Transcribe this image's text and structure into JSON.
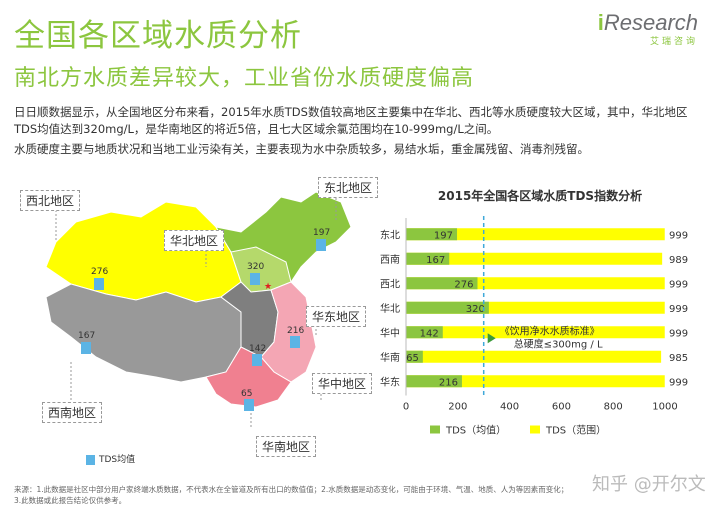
{
  "header": {
    "title": "全国各区域水质分析",
    "subtitle": "南北方水质差异较大，工业省份水质硬度偏高",
    "logo_brand_i": "i",
    "logo_brand_rest": "Research",
    "logo_sub": "艾瑞咨询"
  },
  "body_text": {
    "p1": "日日顺数据显示，从全国地区分布来看，2015年水质TDS数值较高地区主要集中在华北、西北等水质硬度较大区域，其中，华北地区TDS均值达到320mg/L，是华南地区的将近5倍，且七大区域余氯范围均在10-999mg/L之间。",
    "p2": "水质硬度主要与地质状况和当地工业污染有关，主要表现为水中杂质较多，易结水垢，重金属残留、消毒剂残留。"
  },
  "map": {
    "regions": [
      {
        "name": "西北地区",
        "value": "276"
      },
      {
        "name": "东北地区",
        "value": "197"
      },
      {
        "name": "华北地区",
        "value": "320"
      },
      {
        "name": "华东地区",
        "value": "216"
      },
      {
        "name": "西南地区",
        "value": "167"
      },
      {
        "name": "华中地区",
        "value": "142"
      },
      {
        "name": "华南地区",
        "value": "65"
      }
    ],
    "legend": "TDS均值"
  },
  "chart_data": {
    "type": "bar",
    "orientation": "horizontal",
    "stacked": false,
    "title": "2015年全国各区域水质TDS指数分析",
    "categories": [
      "东北",
      "西南",
      "西北",
      "华北",
      "华中",
      "华南",
      "华东"
    ],
    "series": [
      {
        "name": "TDS（均值）",
        "values": [
          197,
          167,
          276,
          320,
          142,
          65,
          216
        ],
        "color": "#8cc63f"
      },
      {
        "name": "TDS（范围）",
        "values": [
          999,
          989,
          999,
          999,
          999,
          985,
          999
        ],
        "color": "#ffff00"
      }
    ],
    "xlim": [
      0,
      1000
    ],
    "xticks": [
      "0",
      "200",
      "400",
      "600",
      "800",
      "1000"
    ],
    "reference_line": {
      "value": 300,
      "label_line1": "《饮用净水水质标准》",
      "label_line2": "总硬度≤300mg / L"
    }
  },
  "footer": {
    "line1": "来源：1.此数据是社区中部分用户家终端水质数据，不代表水在全管道及所有出口的数值值；2.水质数据是动态变化，可能由于环境、气温、地质、人为等因素而变化；",
    "line2": "3.此数据或此报告结论仅供参考。"
  },
  "watermark": "知乎 @开尔文",
  "colors": {
    "accent": "#8cc63f",
    "range": "#ffff00",
    "refline": "#3fa9d9"
  }
}
